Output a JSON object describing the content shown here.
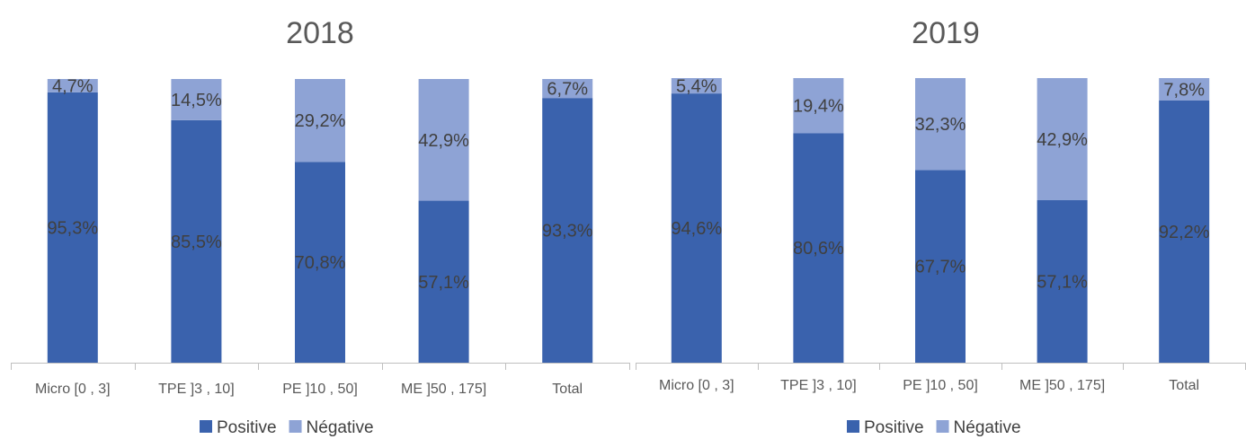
{
  "chart_data": [
    {
      "type": "bar",
      "stacked": true,
      "title": "2018",
      "categories": [
        "Micro [0 , 3]",
        "TPE ]3 , 10]",
        "PE ]10 , 50]",
        "ME ]50 , 175]",
        "Total"
      ],
      "series": [
        {
          "name": "Positive",
          "color": "#3a62ad",
          "values": [
            95.3,
            85.5,
            70.8,
            57.1,
            93.3
          ],
          "labels": [
            "95,3%",
            "85,5%",
            "70,8%",
            "57,1%",
            "93,3%"
          ]
        },
        {
          "name": "Négative",
          "color": "#8ea3d5",
          "values": [
            4.7,
            14.5,
            29.2,
            42.9,
            6.7
          ],
          "labels": [
            "4,7%",
            "14,5%",
            "29,2%",
            "42,9%",
            "6,7%"
          ]
        }
      ],
      "ylim": [
        0,
        100
      ],
      "grid": false,
      "legend": "bottom"
    },
    {
      "type": "bar",
      "stacked": true,
      "title": "2019",
      "categories": [
        "Micro [0 , 3]",
        "TPE ]3 , 10]",
        "PE ]10 , 50]",
        "ME ]50 , 175]",
        "Total"
      ],
      "series": [
        {
          "name": "Positive",
          "color": "#3a62ad",
          "values": [
            94.6,
            80.6,
            67.7,
            57.1,
            92.2
          ],
          "labels": [
            "94,6%",
            "80,6%",
            "67,7%",
            "57,1%",
            "92,2%"
          ]
        },
        {
          "name": "Négative",
          "color": "#8ea3d5",
          "values": [
            5.4,
            19.4,
            32.3,
            42.9,
            7.8
          ],
          "labels": [
            "5,4%",
            "19,4%",
            "32,3%",
            "42,9%",
            "7,8%"
          ]
        }
      ],
      "ylim": [
        0,
        100
      ],
      "grid": false,
      "legend": "bottom"
    }
  ]
}
